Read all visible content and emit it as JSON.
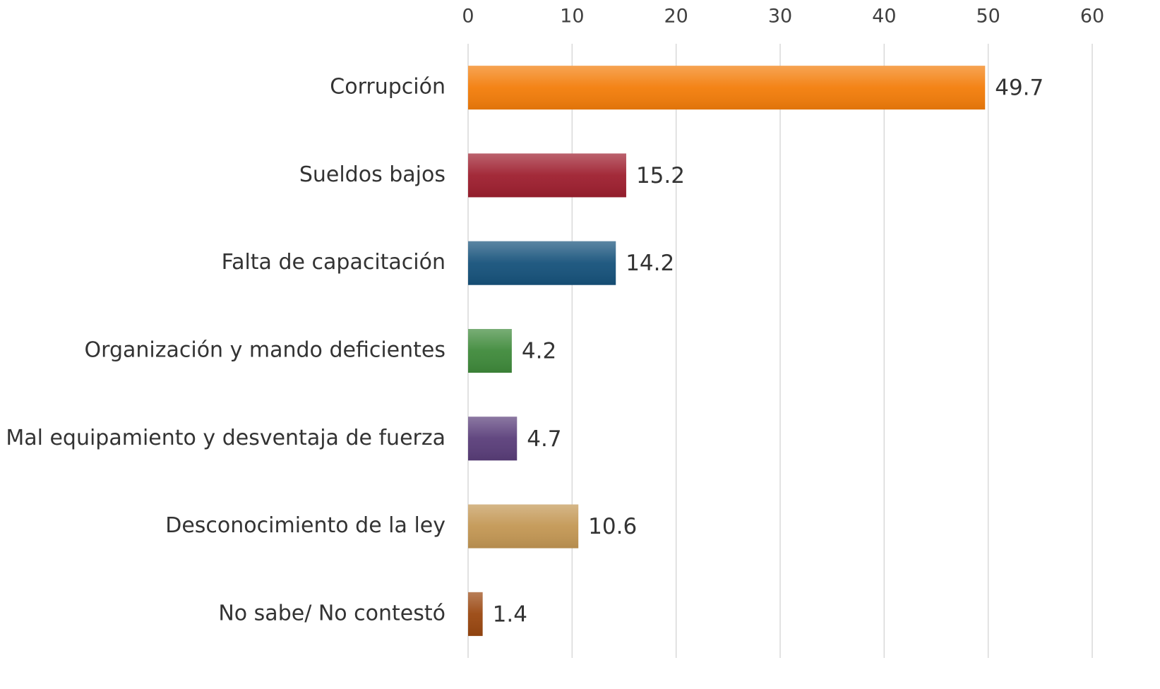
{
  "chart_data": {
    "type": "bar",
    "orientation": "horizontal",
    "categories": [
      "Corrupción",
      "Sueldos bajos",
      "Falta de capacitación",
      "Organización y mando deficientes",
      "Mal equipamiento y desventaja de fuerza",
      "Desconocimiento de la ley",
      "No sabe/ No contestó"
    ],
    "values": [
      49.7,
      15.2,
      14.2,
      4.2,
      4.7,
      10.6,
      1.4
    ],
    "colors": [
      "#f37d0a",
      "#9e1f2f",
      "#16527b",
      "#3f8a3b",
      "#5a3e7a",
      "#c39754",
      "#9a4710"
    ],
    "xlim": [
      0,
      60
    ],
    "xticks": [
      0,
      10,
      20,
      30,
      40,
      50,
      60
    ],
    "grid": true
  }
}
